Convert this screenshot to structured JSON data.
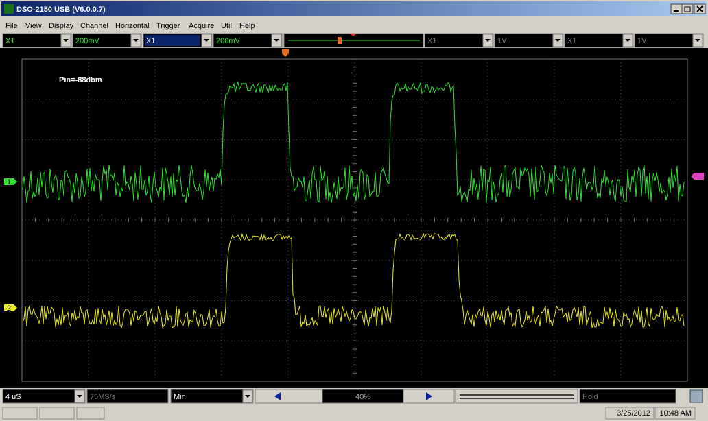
{
  "window": {
    "title": "DSO-2150 USB (V6.0.0.7)"
  },
  "menu": [
    "File",
    "View",
    "Display",
    "Channel",
    "Horizontal",
    "Trigger",
    "Acquire",
    "Util",
    "Help"
  ],
  "toolbar": [
    "X1",
    "200mV",
    "X1",
    "200mV",
    "X1",
    "1V",
    "X1",
    "1V"
  ],
  "screen": {
    "annotation": "Pin=-88dbm",
    "channel_markers": [
      "1",
      "2"
    ]
  },
  "bottom_bar": {
    "timebase": "4 uS",
    "sample_rate": "75MS/s",
    "mode": "Min",
    "position": "40%",
    "state": "Hold"
  },
  "status_bar": {
    "date": "3/25/2012",
    "time": "10:48 AM"
  }
}
